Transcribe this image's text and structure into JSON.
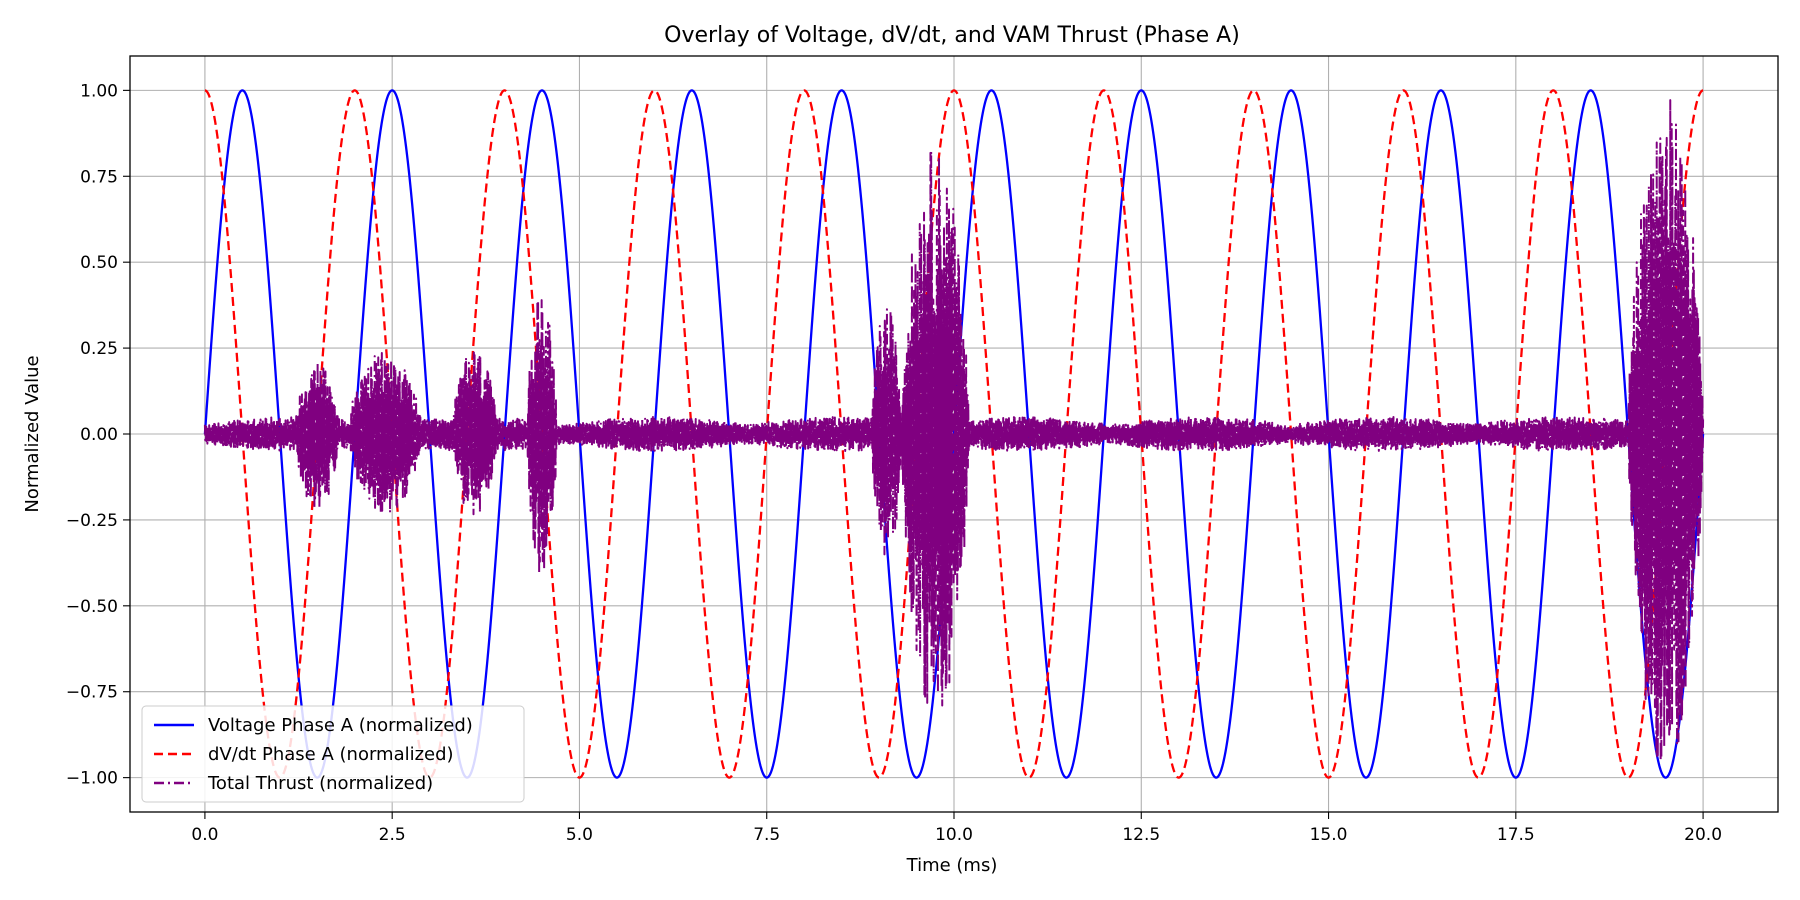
{
  "chart_data": {
    "type": "line",
    "title": "Overlay of Voltage, dV/dt, and VAM Thrust (Phase A)",
    "xlabel": "Time (ms)",
    "ylabel": "Normalized Value",
    "xlim": [
      -1.0,
      21.0
    ],
    "ylim": [
      -1.1,
      1.1
    ],
    "xticks": [
      0.0,
      2.5,
      5.0,
      7.5,
      10.0,
      12.5,
      15.0,
      17.5,
      20.0
    ],
    "xtick_labels": [
      "0.0",
      "2.5",
      "5.0",
      "7.5",
      "10.0",
      "12.5",
      "15.0",
      "17.5",
      "20.0"
    ],
    "yticks": [
      1.0,
      0.75,
      0.5,
      0.25,
      0.0,
      -0.25,
      -0.5,
      -0.75,
      -1.0
    ],
    "ytick_labels": [
      "1.00",
      "0.75",
      "0.50",
      "0.25",
      "0.00",
      "−0.25",
      "−0.50",
      "−0.75",
      "−1.00"
    ],
    "grid": true,
    "legend_position": "bottom-left",
    "series": [
      {
        "name": "Voltage Phase A (normalized)",
        "color": "#0000ff",
        "style": "solid",
        "function": "sine",
        "amplitude": 1.0,
        "period_ms": 2.0,
        "phase": "starts at 0.00 at t=0, peaks 1.00 at t=0.5"
      },
      {
        "name": "dV/dt Phase A (normalized)",
        "color": "#ff0000",
        "style": "dashed",
        "function": "cosine",
        "amplitude": 1.0,
        "period_ms": 2.0,
        "phase": "starts at 1.00 at t=0"
      },
      {
        "name": "Total Thrust (normalized)",
        "color": "#800080",
        "style": "dashdot",
        "function": "noise-bursts",
        "baseline_amplitude": 0.05,
        "bursts": [
          {
            "t_start": 1.2,
            "t_end": 1.8,
            "amplitude": 0.22
          },
          {
            "t_start": 1.9,
            "t_end": 2.9,
            "amplitude": 0.24
          },
          {
            "t_start": 3.3,
            "t_end": 3.9,
            "amplitude": 0.25
          },
          {
            "t_start": 4.3,
            "t_end": 4.7,
            "amplitude": 0.42
          },
          {
            "t_start": 8.9,
            "t_end": 9.3,
            "amplitude": 0.38
          },
          {
            "t_start": 9.3,
            "t_end": 10.2,
            "amplitude": 0.84
          },
          {
            "t_start": 19.0,
            "t_end": 20.0,
            "amplitude": 0.99
          }
        ]
      }
    ]
  }
}
